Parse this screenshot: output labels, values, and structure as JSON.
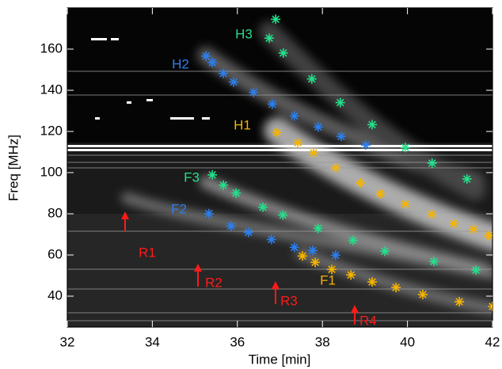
{
  "chart_data": {
    "type": "scatter",
    "x_label": "Time [min]",
    "y_label": "Freq [MHz]",
    "xlim": [
      32,
      42
    ],
    "ylim": [
      25,
      180
    ],
    "xticks": [
      32,
      34,
      36,
      38,
      40,
      42
    ],
    "yticks": [
      40,
      60,
      80,
      100,
      120,
      140,
      160
    ],
    "marker": "asterisk",
    "series": [
      {
        "name": "H3",
        "color": "#22e08a",
        "x": [
          36.9,
          36.75,
          37.08,
          37.75,
          38.42,
          39.17,
          39.95,
          40.58,
          41.4
        ],
        "values": [
          174.5,
          165.3,
          158.1,
          145.5,
          134.0,
          123.3,
          112.2,
          104.6,
          96.9
        ]
      },
      {
        "name": "H2",
        "color": "#2a7ff0",
        "x": [
          35.26,
          35.41,
          35.67,
          35.91,
          36.38,
          36.82,
          37.34,
          37.9,
          38.44,
          39.02
        ],
        "values": [
          156.6,
          153.5,
          148.2,
          144.0,
          139.0,
          133.3,
          127.5,
          122.2,
          117.6,
          113.4
        ]
      },
      {
        "name": "H1",
        "color": "#f5b400",
        "x": [
          36.93,
          37.42,
          37.79,
          38.31,
          38.89,
          39.36,
          39.95,
          40.57,
          41.09,
          41.55,
          41.91
        ],
        "values": [
          119.5,
          114.5,
          109.6,
          102.3,
          95.0,
          89.7,
          84.7,
          79.8,
          75.2,
          72.5,
          69.4
        ]
      },
      {
        "name": "F3",
        "color": "#22e08a",
        "x": [
          35.41,
          35.67,
          35.97,
          36.6,
          37.07,
          37.9,
          38.72,
          39.47,
          40.62,
          41.61
        ],
        "values": [
          98.9,
          93.9,
          90.1,
          83.2,
          79.4,
          72.9,
          67.1,
          61.8,
          56.8,
          52.6
        ]
      },
      {
        "name": "F2",
        "color": "#2a7ff0",
        "x": [
          35.33,
          35.85,
          36.26,
          36.8,
          37.34,
          37.77,
          38.31
        ],
        "values": [
          80.1,
          74.0,
          71.0,
          67.5,
          63.7,
          62.2,
          59.9
        ]
      },
      {
        "name": "F1",
        "color": "#f5b400",
        "x": [
          37.53,
          37.83,
          38.22,
          38.67,
          39.17,
          39.73,
          40.36,
          41.22,
          42.0
        ],
        "values": [
          59.5,
          56.4,
          53.0,
          50.3,
          46.9,
          44.2,
          40.8,
          37.3,
          35.0
        ]
      }
    ],
    "annotations": [
      "R1",
      "R2",
      "R3",
      "R4"
    ],
    "annotation_color": "#ff1a1a"
  }
}
